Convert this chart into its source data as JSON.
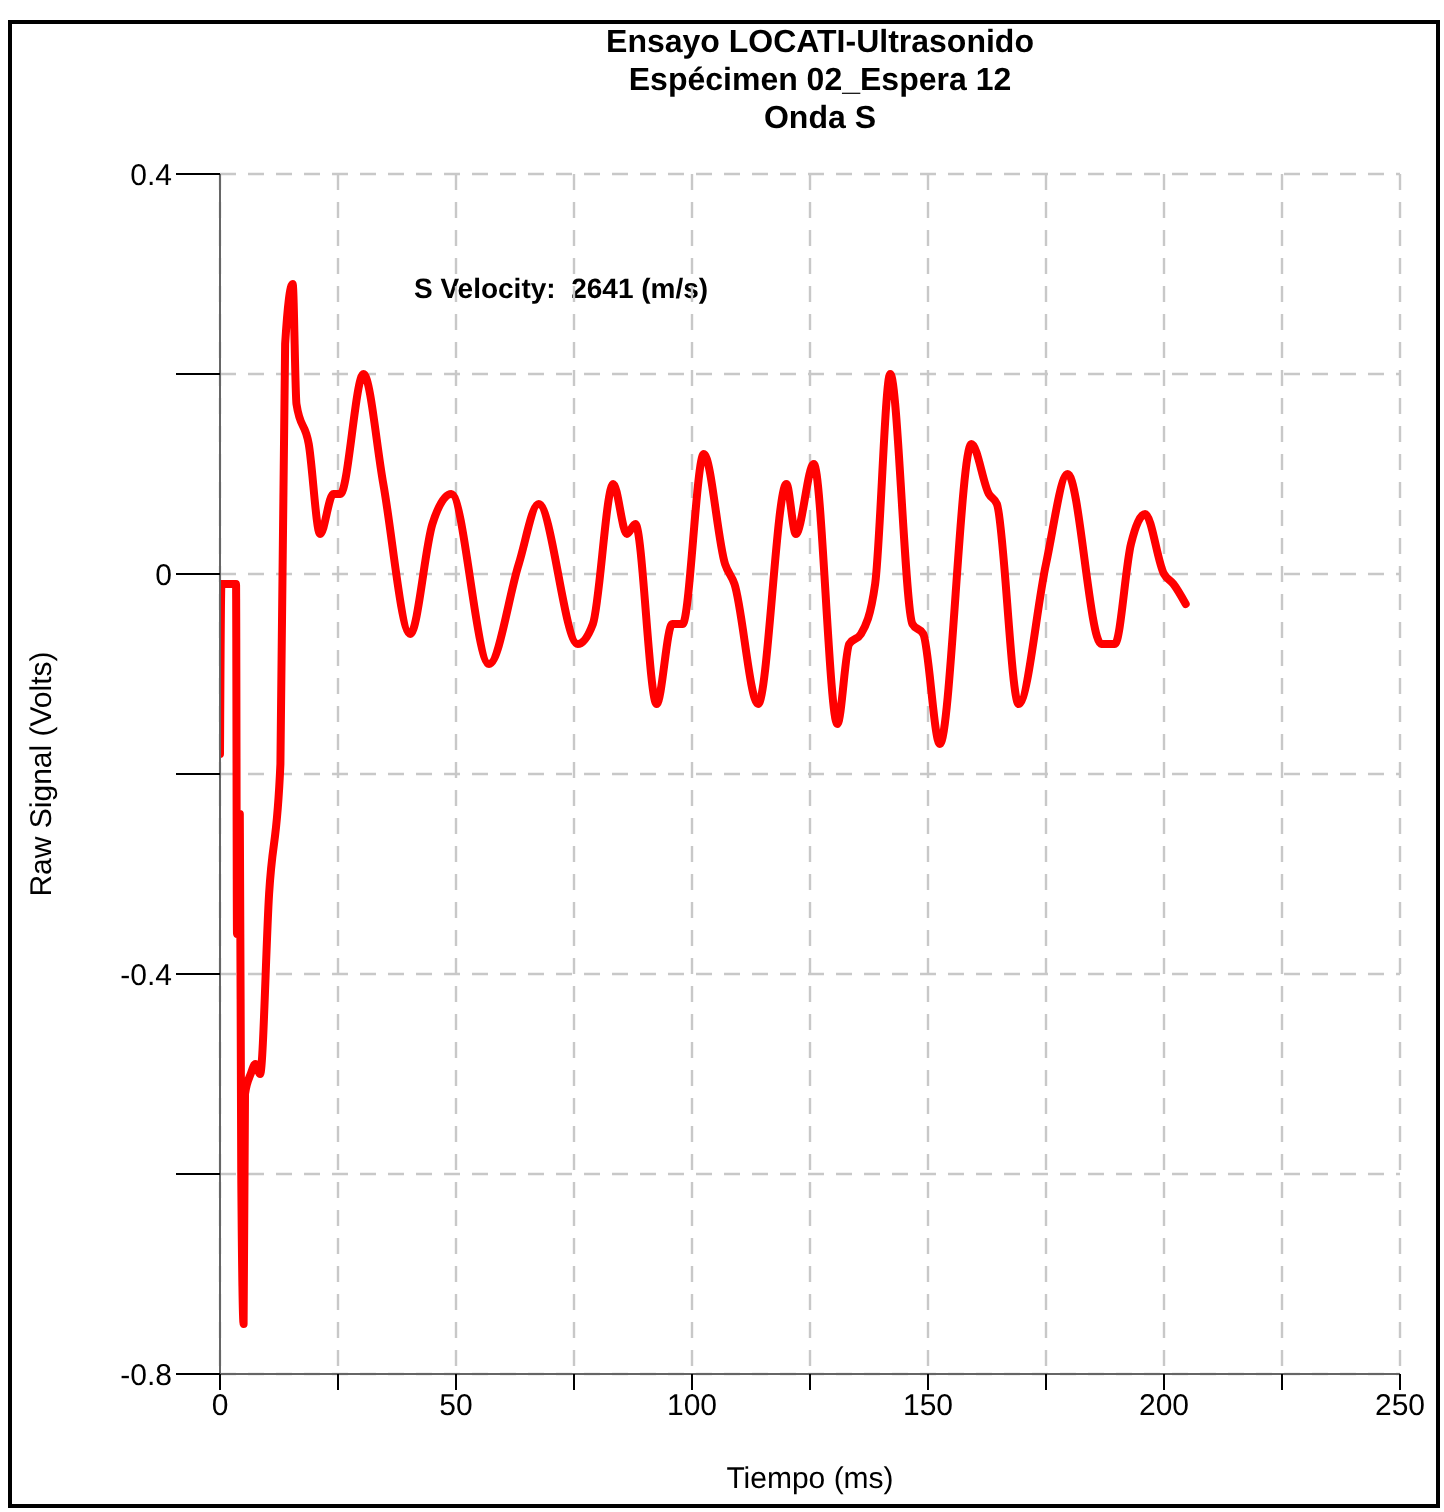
{
  "chart_data": {
    "type": "line",
    "title": "Ensayo LOCATI-Ultrasonido\nEspécimen 02_Espera 12\nOnda S",
    "xlabel": "Tiempo (ms)",
    "ylabel": "Raw Signal (Volts)",
    "annotations": [
      "S Velocity:  2641 (m/s)"
    ],
    "series": [
      {
        "color": "#ff0000",
        "x": [
          0,
          0.3,
          3.4,
          3.6,
          4.2,
          4.5,
          5,
          5.3,
          6.5,
          7.5,
          8.5,
          10.4,
          12.8,
          13.8,
          15.4,
          16.2,
          18.8,
          21.2,
          24,
          25.5,
          30.4,
          34.6,
          40.3,
          45,
          49,
          57,
          63.3,
          67.5,
          75.8,
          79,
          83.3,
          86.2,
          88,
          92.5,
          95.8,
          98,
          102.5,
          107,
          109,
          114,
          120,
          122,
          125.8,
          130.8,
          133.3,
          135.8,
          138.8,
          142,
          146.7,
          149,
          152.5,
          159.2,
          162.9,
          164.6,
          169.2,
          175,
          179.6,
          186.7,
          189.6,
          193,
          196,
          200,
          202,
          204.6
        ],
        "values": [
          -0.18,
          -0.01,
          -0.01,
          -0.36,
          -0.24,
          -0.6,
          -0.75,
          -0.52,
          -0.5,
          -0.49,
          -0.5,
          -0.32,
          -0.19,
          0.23,
          0.29,
          0.17,
          0.13,
          0.04,
          0.08,
          0.08,
          0.2,
          0.09,
          -0.06,
          0.05,
          0.08,
          -0.09,
          0.01,
          0.07,
          -0.07,
          -0.05,
          0.09,
          0.04,
          0.05,
          -0.13,
          -0.05,
          -0.05,
          0.12,
          0.01,
          -0.01,
          -0.13,
          0.09,
          0.04,
          0.11,
          -0.15,
          -0.07,
          -0.06,
          -0.01,
          0.2,
          -0.05,
          -0.06,
          -0.17,
          0.13,
          0.08,
          0.07,
          -0.13,
          0.01,
          0.1,
          -0.07,
          -0.07,
          0.03,
          0.06,
          0,
          -0.01,
          -0.03
        ]
      }
    ],
    "xlim": [
      0,
      250
    ],
    "ylim": [
      -0.8,
      0.4
    ],
    "xticks": [
      0,
      {
        "value": 25,
        "label": null
      },
      50,
      {
        "value": 75,
        "label": null
      },
      100,
      {
        "value": 125,
        "label": null
      },
      150,
      {
        "value": 175,
        "label": null
      },
      200,
      {
        "value": 225,
        "label": null
      },
      250
    ],
    "yticks": [
      -0.8,
      {
        "value": -0.6,
        "label": null
      },
      -0.4,
      {
        "value": -0.2,
        "label": null
      },
      0,
      {
        "value": 0.2,
        "label": null
      },
      0.4
    ],
    "grid": true,
    "legend": false,
    "marker": "none",
    "line_style": "solid"
  }
}
